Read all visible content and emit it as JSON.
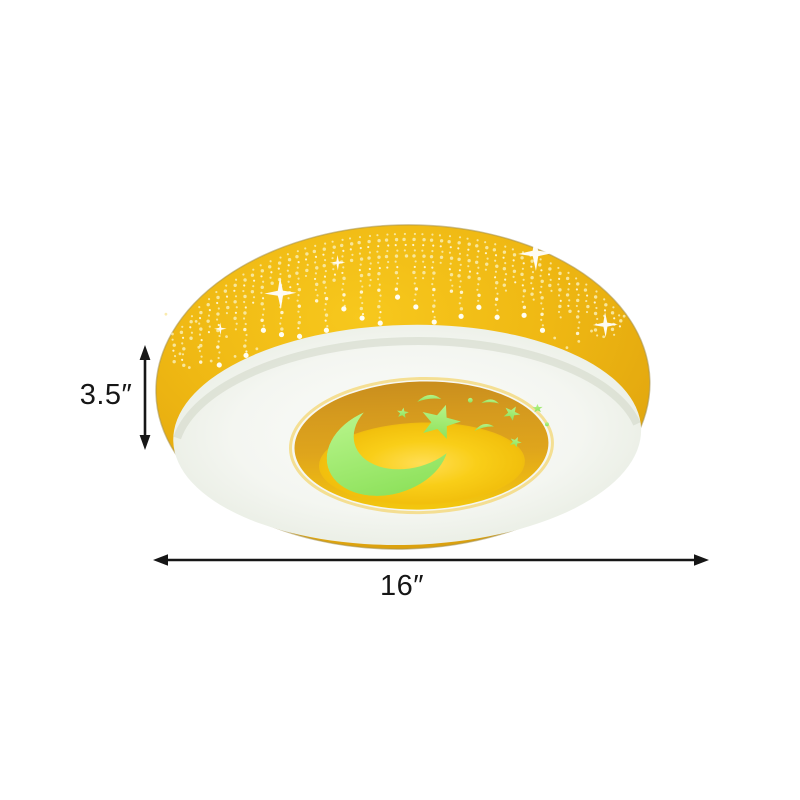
{
  "product": {
    "description": "Yellow round flush-mount ceiling light, perforated starry drum, white diffuser ring, amber center disc with glowing green crescent moon and stars",
    "dimensions": {
      "height_label": "3.5″",
      "width_label": "16″"
    },
    "colors": {
      "drum_yellow": "#EFB813",
      "drum_yellow_dark": "#CE950C",
      "diffuser_white": "#F4F6F1",
      "disc_amber": "#D89B1E",
      "disc_glow": "#F6C90E",
      "cutout_green": "#A4EB70",
      "perforation_dot": "#F9E9A6",
      "dimension_line": "#161616",
      "background": "#FFFFFF"
    },
    "fixture": {
      "perforation": {
        "columns": [
          [
            175,
            22
          ],
          [
            184,
            40
          ],
          [
            193,
            26
          ],
          [
            202,
            58
          ],
          [
            211,
            34
          ],
          [
            220,
            70
          ],
          [
            229,
            28
          ],
          [
            238,
            52
          ],
          [
            247,
            78
          ],
          [
            256,
            36
          ],
          [
            265,
            62
          ],
          [
            274,
            24
          ],
          [
            283,
            74
          ],
          [
            292,
            46
          ],
          [
            301,
            86
          ],
          [
            310,
            30
          ],
          [
            319,
            58
          ],
          [
            328,
            90
          ],
          [
            337,
            40
          ],
          [
            346,
            66
          ],
          [
            355,
            26
          ],
          [
            364,
            78
          ],
          [
            373,
            50
          ],
          [
            382,
            94
          ],
          [
            391,
            34
          ],
          [
            400,
            60
          ],
          [
            409,
            26
          ],
          [
            418,
            70
          ],
          [
            427,
            46
          ],
          [
            436,
            88
          ],
          [
            445,
            32
          ],
          [
            454,
            58
          ],
          [
            463,
            76
          ],
          [
            472,
            40
          ],
          [
            481,
            64
          ],
          [
            490,
            28
          ],
          [
            499,
            70
          ],
          [
            508,
            48
          ],
          [
            517,
            34
          ],
          [
            526,
            60
          ],
          [
            535,
            44
          ],
          [
            544,
            68
          ],
          [
            553,
            30
          ],
          [
            562,
            52
          ],
          [
            571,
            40
          ],
          [
            580,
            58
          ],
          [
            589,
            28
          ],
          [
            598,
            44
          ],
          [
            607,
            20
          ],
          [
            615,
            32
          ],
          [
            622,
            16
          ]
        ],
        "scatter": [
          [
            168,
            308
          ],
          [
            174,
            328
          ],
          [
            181,
            348
          ],
          [
            190,
            362
          ],
          [
            200,
            342
          ],
          [
            212,
            356
          ],
          [
            224,
            366
          ],
          [
            236,
            352
          ],
          [
            247,
            370
          ],
          [
            198,
            316
          ],
          [
            228,
            332
          ],
          [
            258,
            345
          ],
          [
            556,
            342
          ],
          [
            568,
            352
          ],
          [
            580,
            346
          ],
          [
            593,
            336
          ],
          [
            605,
            342
          ],
          [
            616,
            330
          ],
          [
            626,
            322
          ]
        ]
      }
    }
  }
}
